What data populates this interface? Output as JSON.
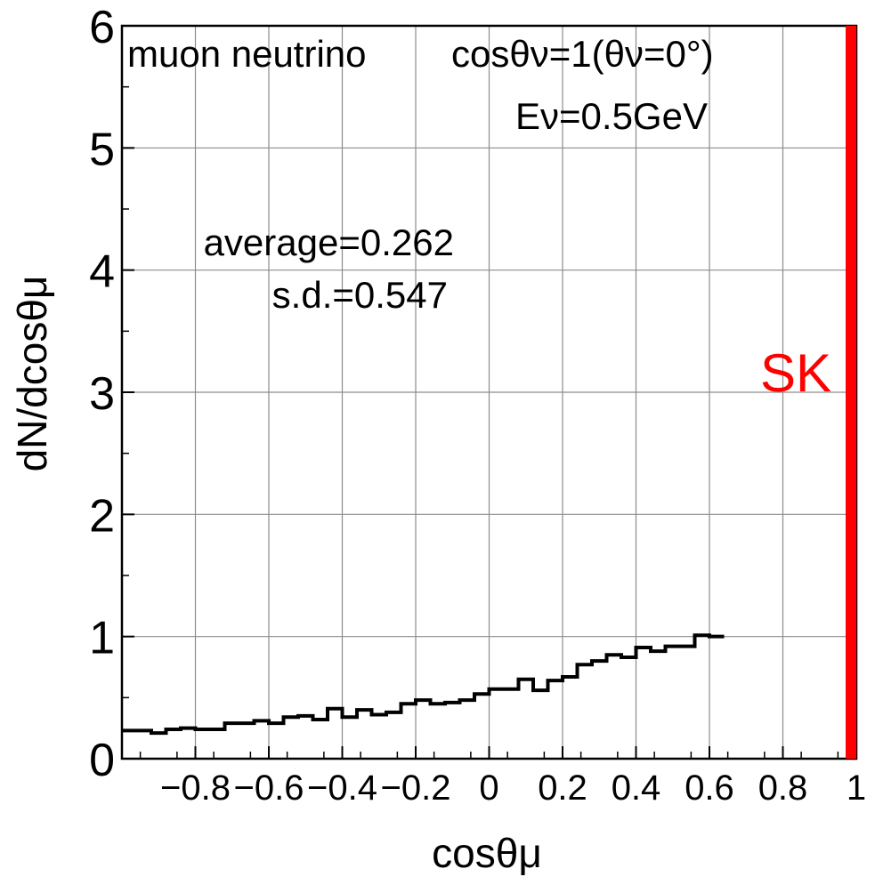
{
  "chart_data": {
    "type": "step",
    "xlabel": "cosθμ",
    "ylabel": "dN/dcosθμ",
    "xlim": [
      -1.0,
      1.0
    ],
    "ylim": [
      0,
      6
    ],
    "grid": true,
    "x_ticks": [
      -0.8,
      -0.6,
      -0.4,
      -0.2,
      0,
      0.2,
      0.4,
      0.6,
      0.8,
      1
    ],
    "x_tick_labels": [
      "−0.8",
      "−0.6",
      "−0.4",
      "−0.2",
      "0",
      "0.2",
      "0.4",
      "0.6",
      "0.8",
      "1"
    ],
    "y_ticks": [
      0,
      1,
      2,
      3,
      4,
      5,
      6
    ],
    "y_tick_labels": [
      "0",
      "1",
      "2",
      "3",
      "4",
      "5",
      "6"
    ],
    "bin_edges_start": -1.0,
    "bin_width": 0.04,
    "series": [
      {
        "values": [
          0.23,
          0.23,
          0.21,
          0.24,
          0.25,
          0.24,
          0.24,
          0.29,
          0.29,
          0.31,
          0.29,
          0.34,
          0.35,
          0.32,
          0.41,
          0.34,
          0.4,
          0.36,
          0.38,
          0.45,
          0.48,
          0.45,
          0.46,
          0.48,
          0.53,
          0.57,
          0.57,
          0.65,
          0.56,
          0.64,
          0.67,
          0.77,
          0.8,
          0.85,
          0.83,
          0.91,
          0.88,
          0.92,
          0.92,
          1.01,
          1.0
        ]
      }
    ],
    "marker": {
      "label": "SK",
      "x": 1.0,
      "color": "#ff0000"
    },
    "annotations": {
      "line1_left": "muon neutrino",
      "line1_right": "cosθν=1(θν=0°)",
      "line2": "Eν=0.5GeV",
      "average": "average=0.262",
      "sd": "s.d.=0.547"
    }
  }
}
